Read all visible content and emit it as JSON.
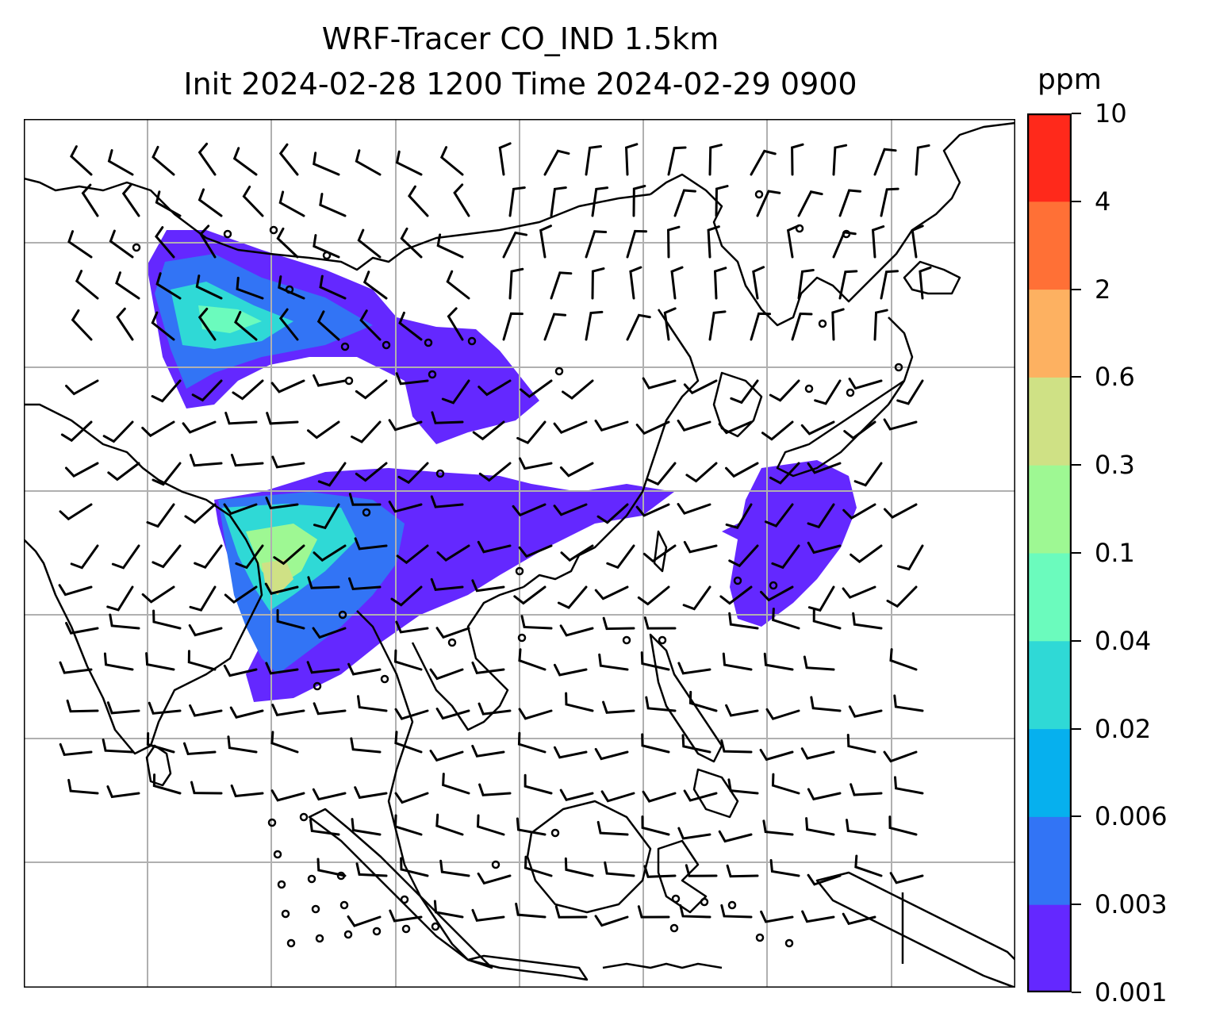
{
  "title": {
    "line1": "WRF-Tracer CO_IND 1.5km",
    "line2": "Init 2024-02-28 1200 Time 2024-02-29 0900"
  },
  "colorbar": {
    "unit": "ppm",
    "levels": [
      "0.001",
      "0.003",
      "0.006",
      "0.02",
      "0.04",
      "0.1",
      "0.3",
      "0.6",
      "2",
      "4",
      "10"
    ],
    "colors": [
      "#6428ff",
      "#3274f5",
      "#06b0ee",
      "#2fd9d6",
      "#6bfbbd",
      "#9ef893",
      "#cfe185",
      "#fdb161",
      "#ff7036",
      "#ff291b"
    ]
  },
  "map": {
    "region": "South and Southeast Asia",
    "layers": [
      "coastlines",
      "country-borders",
      "gridlines",
      "tracer-concentration-fill",
      "wind-barbs",
      "calm-wind-circles"
    ]
  }
}
